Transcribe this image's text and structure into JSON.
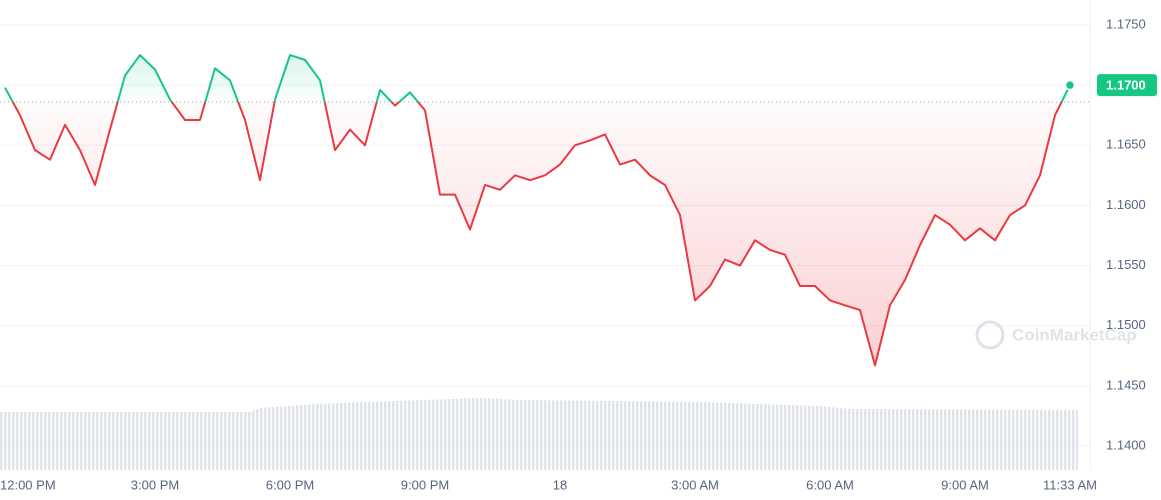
{
  "chart_data": {
    "type": "line",
    "categories": [
      null,
      "12:00 PM",
      null,
      null,
      null,
      null,
      null,
      null,
      null,
      null,
      "3:00 PM",
      null,
      null,
      null,
      null,
      null,
      null,
      null,
      null,
      "6:00 PM",
      null,
      null,
      null,
      null,
      null,
      null,
      null,
      null,
      "9:00 PM",
      null,
      null,
      null,
      null,
      null,
      null,
      null,
      null,
      "18",
      null,
      null,
      null,
      null,
      null,
      null,
      null,
      null,
      "3:00 AM",
      null,
      null,
      null,
      null,
      null,
      null,
      null,
      null,
      "6:00 AM",
      null,
      null,
      null,
      null,
      null,
      null,
      null,
      null,
      "9:00 AM",
      null,
      null,
      null,
      null,
      null,
      null,
      "11:33 AM"
    ],
    "values": [
      1.1698,
      1.1675,
      1.1646,
      1.1638,
      1.1667,
      1.1646,
      1.1617,
      1.1663,
      1.1708,
      1.1725,
      1.1713,
      1.1688,
      1.1671,
      1.1671,
      1.1714,
      1.1704,
      1.1671,
      1.1621,
      1.1688,
      1.1725,
      1.1721,
      1.1704,
      1.1646,
      1.1663,
      1.165,
      1.1696,
      1.1683,
      1.1694,
      1.1679,
      1.1609,
      1.1609,
      1.158,
      1.1617,
      1.1613,
      1.1625,
      1.1621,
      1.1625,
      1.1634,
      1.165,
      1.1654,
      1.1659,
      1.1634,
      1.1638,
      1.1625,
      1.1617,
      1.1592,
      1.1521,
      1.1533,
      1.1555,
      1.155,
      1.1571,
      1.1563,
      1.1559,
      1.1533,
      1.1533,
      1.1521,
      1.1517,
      1.1513,
      1.1467,
      1.1517,
      1.1538,
      1.1567,
      1.1592,
      1.1584,
      1.1571,
      1.1581,
      1.1571,
      1.1592,
      1.16,
      1.1625,
      1.1675,
      1.17
    ],
    "baseline": 1.1686,
    "up_color": "#16c784",
    "down_color": "#ea3943",
    "last_price": {
      "value": 1.17,
      "label": "1.1700"
    },
    "ylim": [
      1.14,
      1.175
    ],
    "yticks": [
      {
        "value": 1.14,
        "label": "1.1400"
      },
      {
        "value": 1.145,
        "label": "1.1450"
      },
      {
        "value": 1.15,
        "label": "1.1500"
      },
      {
        "value": 1.155,
        "label": "1.1550"
      },
      {
        "value": 1.16,
        "label": "1.1600"
      },
      {
        "value": 1.165,
        "label": "1.1650"
      },
      {
        "value": 1.17,
        "label": "1.1700"
      },
      {
        "value": 1.175,
        "label": "1.1750"
      }
    ],
    "grid": true,
    "watermark": "CoinMarketCap"
  }
}
